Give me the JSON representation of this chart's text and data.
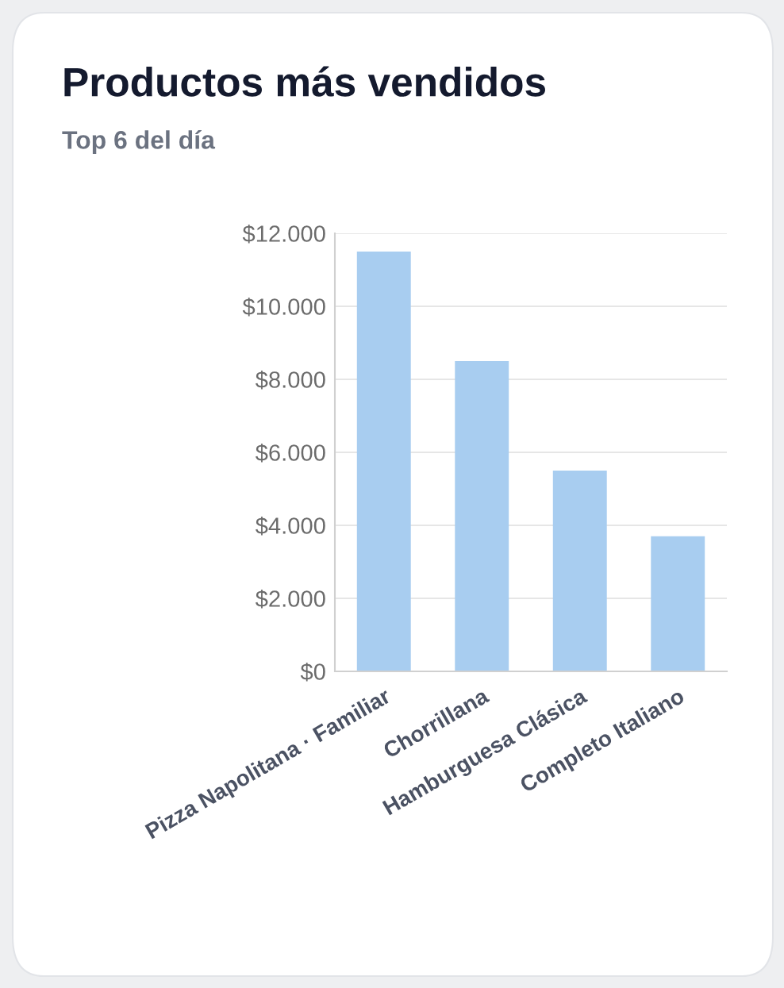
{
  "chart_data": {
    "type": "bar",
    "title": "Productos más vendidos",
    "subtitle": "Top 6 del día",
    "categories": [
      "Pizza Napolitana · Familiar",
      "Chorrillana",
      "Hamburguesa Clásica",
      "Completo Italiano"
    ],
    "values": [
      11500,
      8500,
      5500,
      3700
    ],
    "color": "#a8cdf0",
    "ylim": [
      0,
      12000
    ],
    "yticks": [
      {
        "value": 0,
        "label": "$0"
      },
      {
        "value": 2000,
        "label": "$2.000"
      },
      {
        "value": 4000,
        "label": "$4.000"
      },
      {
        "value": 6000,
        "label": "$6.000"
      },
      {
        "value": 8000,
        "label": "$8.000"
      },
      {
        "value": 10000,
        "label": "$10.000"
      },
      {
        "value": 12000,
        "label": "$12.000"
      }
    ],
    "grid": "y",
    "legend": false
  }
}
